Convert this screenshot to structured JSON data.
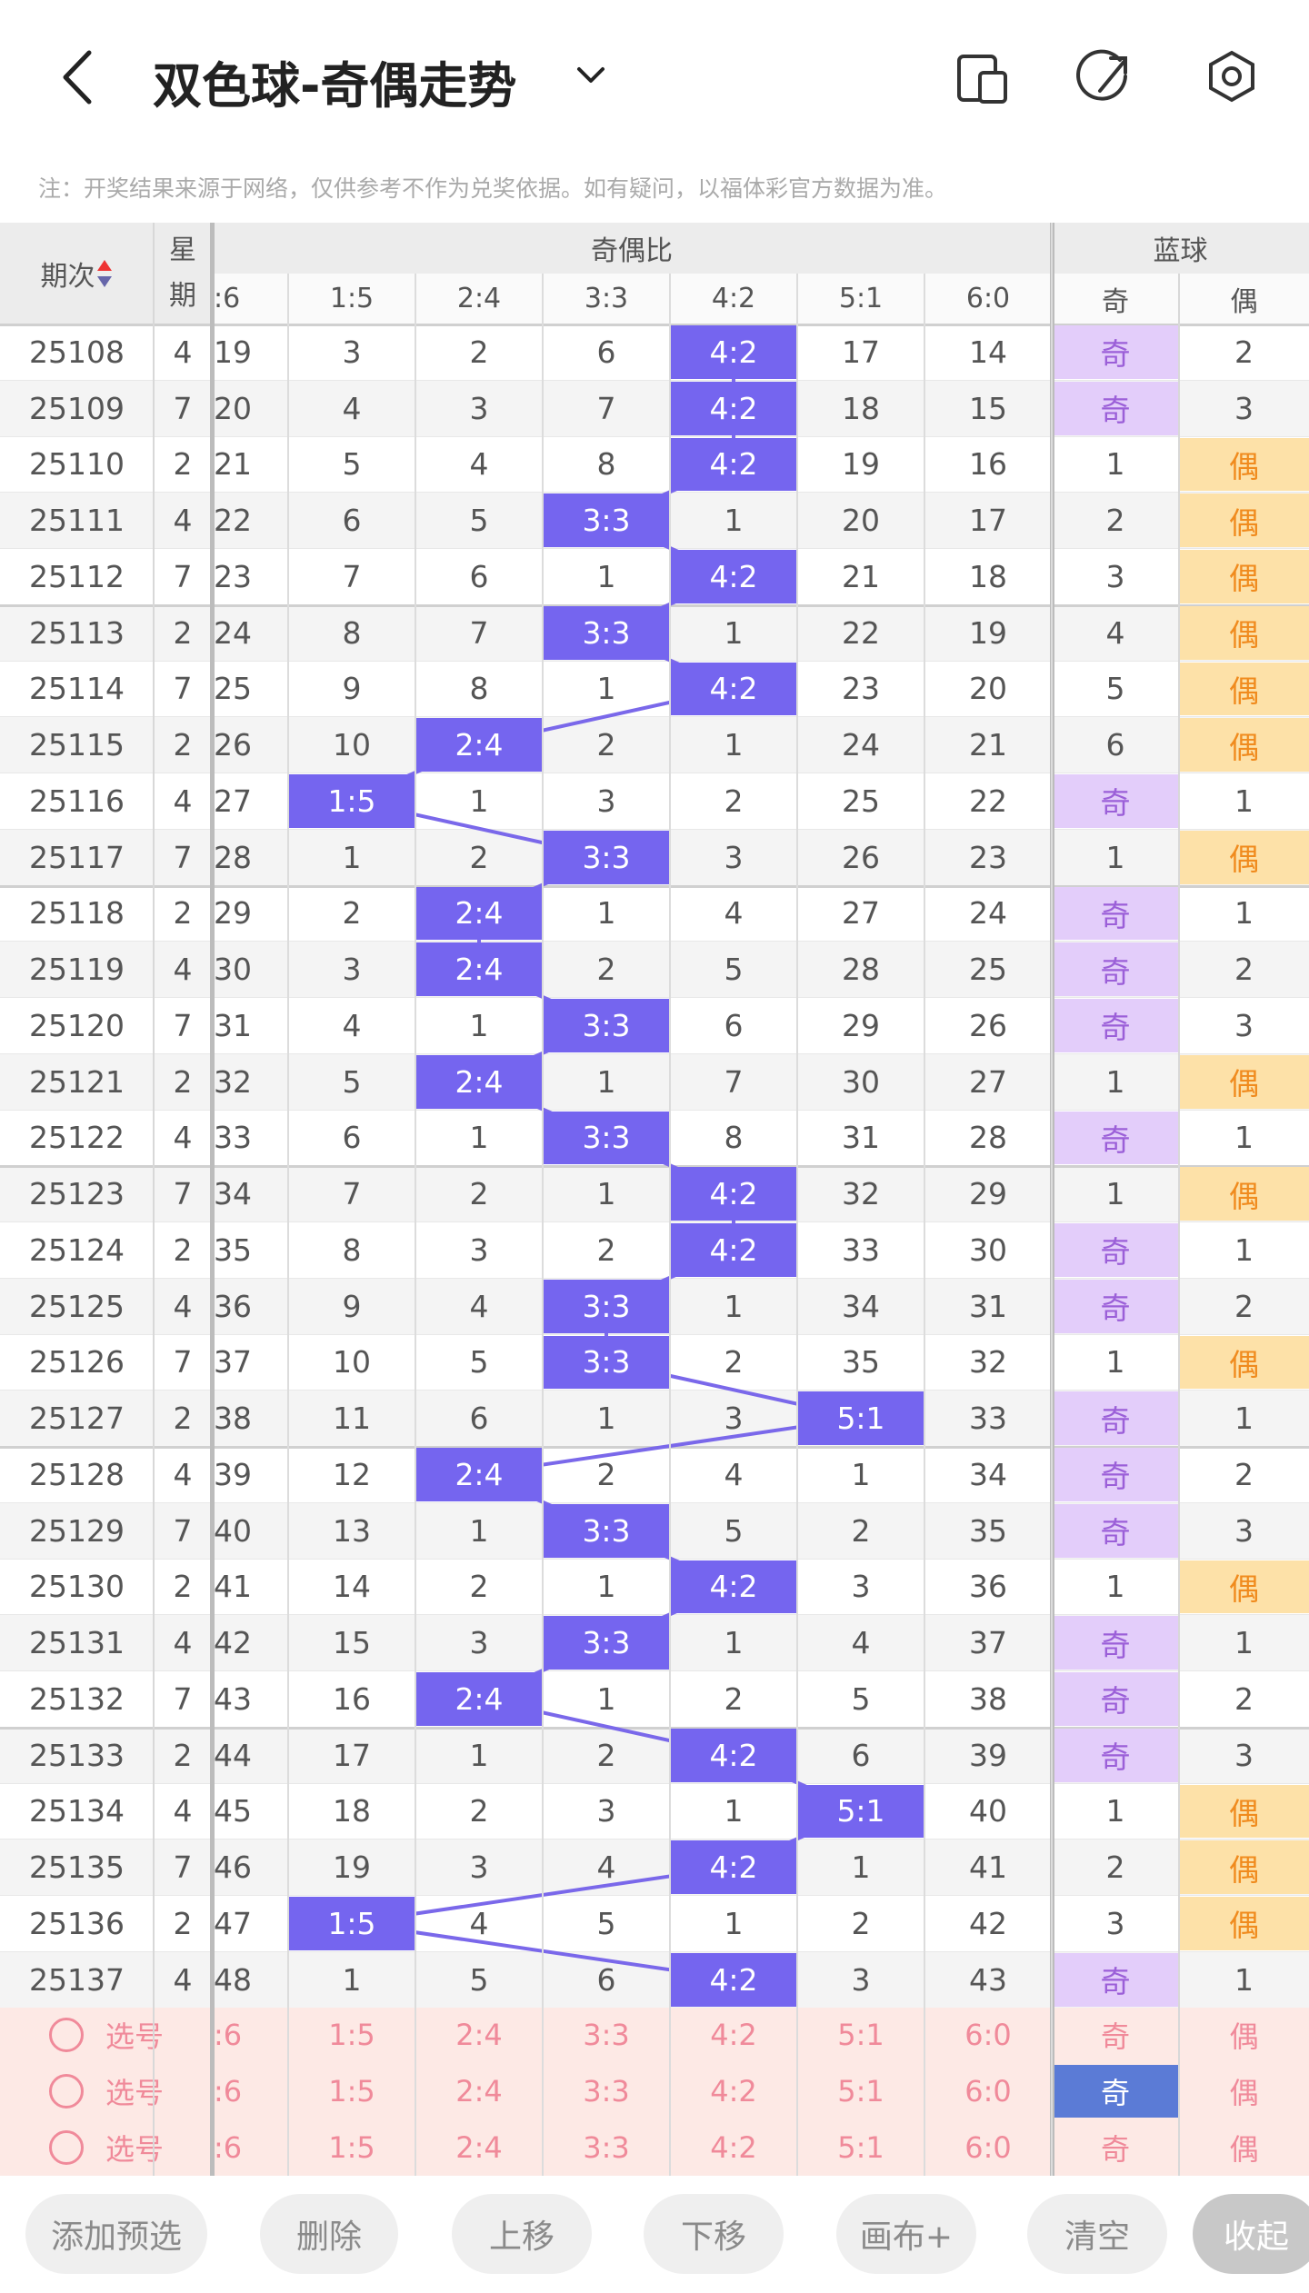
{
  "header": {
    "title": "双色球-奇偶走势"
  },
  "note": "注：开奖结果来源于网络，仅供参考不作为兑奖依据。如有疑问，以福体彩官方数据为准。",
  "table": {
    "columns": [
      "期次",
      "星期"
    ],
    "group_headers": [
      "奇偶比",
      "蓝球"
    ],
    "sub_columns": [
      ":6",
      "1:5",
      "2:4",
      "3:3",
      "4:2",
      "5:1",
      "6:0",
      "奇",
      "偶"
    ],
    "rows": [
      [
        "25108",
        4,
        19,
        3,
        2,
        6,
        "4:2",
        17,
        14,
        "奇",
        2
      ],
      [
        "25109",
        7,
        20,
        4,
        3,
        7,
        "4:2",
        18,
        15,
        "奇",
        3
      ],
      [
        "25110",
        2,
        21,
        5,
        4,
        8,
        "4:2",
        19,
        16,
        1,
        "偶"
      ],
      [
        "25111",
        4,
        22,
        6,
        5,
        "3:3",
        1,
        20,
        17,
        2,
        "偶"
      ],
      [
        "25112",
        7,
        23,
        7,
        6,
        1,
        "4:2",
        21,
        18,
        3,
        "偶"
      ],
      [
        "25113",
        2,
        24,
        8,
        7,
        "3:3",
        1,
        22,
        19,
        4,
        "偶"
      ],
      [
        "25114",
        7,
        25,
        9,
        8,
        1,
        "4:2",
        23,
        20,
        5,
        "偶"
      ],
      [
        "25115",
        2,
        26,
        10,
        "2:4",
        2,
        1,
        24,
        21,
        6,
        "偶"
      ],
      [
        "25116",
        4,
        27,
        "1:5",
        1,
        3,
        2,
        25,
        22,
        "奇",
        1
      ],
      [
        "25117",
        7,
        28,
        1,
        2,
        "3:3",
        3,
        26,
        23,
        1,
        "偶"
      ],
      [
        "25118",
        2,
        29,
        2,
        "2:4",
        1,
        4,
        27,
        24,
        "奇",
        1
      ],
      [
        "25119",
        4,
        30,
        3,
        "2:4",
        2,
        5,
        28,
        25,
        "奇",
        2
      ],
      [
        "25120",
        7,
        31,
        4,
        1,
        "3:3",
        6,
        29,
        26,
        "奇",
        3
      ],
      [
        "25121",
        2,
        32,
        5,
        "2:4",
        1,
        7,
        30,
        27,
        1,
        "偶"
      ],
      [
        "25122",
        4,
        33,
        6,
        1,
        "3:3",
        8,
        31,
        28,
        "奇",
        1
      ],
      [
        "25123",
        7,
        34,
        7,
        2,
        1,
        "4:2",
        32,
        29,
        1,
        "偶"
      ],
      [
        "25124",
        2,
        35,
        8,
        3,
        2,
        "4:2",
        33,
        30,
        "奇",
        1
      ],
      [
        "25125",
        4,
        36,
        9,
        4,
        "3:3",
        1,
        34,
        31,
        "奇",
        2
      ],
      [
        "25126",
        7,
        37,
        10,
        5,
        "3:3",
        2,
        35,
        32,
        1,
        "偶"
      ],
      [
        "25127",
        2,
        38,
        11,
        6,
        1,
        3,
        "5:1",
        33,
        "奇",
        1
      ],
      [
        "25128",
        4,
        39,
        12,
        "2:4",
        2,
        4,
        1,
        34,
        "奇",
        2
      ],
      [
        "25129",
        7,
        40,
        13,
        1,
        "3:3",
        5,
        2,
        35,
        "奇",
        3
      ],
      [
        "25130",
        2,
        41,
        14,
        2,
        1,
        "4:2",
        3,
        36,
        1,
        "偶"
      ],
      [
        "25131",
        4,
        42,
        15,
        3,
        "3:3",
        1,
        4,
        37,
        "奇",
        1
      ],
      [
        "25132",
        7,
        43,
        16,
        "2:4",
        1,
        2,
        5,
        38,
        "奇",
        2
      ],
      [
        "25133",
        2,
        44,
        17,
        1,
        2,
        "4:2",
        6,
        39,
        "奇",
        3
      ],
      [
        "25134",
        4,
        45,
        18,
        2,
        3,
        1,
        "5:1",
        40,
        1,
        "偶"
      ],
      [
        "25135",
        7,
        46,
        19,
        3,
        4,
        "4:2",
        1,
        41,
        2,
        "偶"
      ],
      [
        "25136",
        2,
        47,
        "1:5",
        4,
        5,
        1,
        2,
        42,
        3,
        "偶"
      ],
      [
        "25137",
        4,
        48,
        1,
        5,
        6,
        "4:2",
        3,
        43,
        "奇",
        1
      ]
    ]
  },
  "picks": {
    "label": "选号",
    "cells": [
      ":6",
      "1:5",
      "2:4",
      "3:3",
      "4:2",
      "5:1",
      "6:0",
      "奇",
      "偶"
    ],
    "rows": [
      {
        "selected": null
      },
      {
        "selected": 7
      },
      {
        "selected": null
      }
    ]
  },
  "buttons": [
    "添加预选",
    "删除",
    "上移",
    "下移",
    "画布+",
    "清空",
    "收起"
  ]
}
